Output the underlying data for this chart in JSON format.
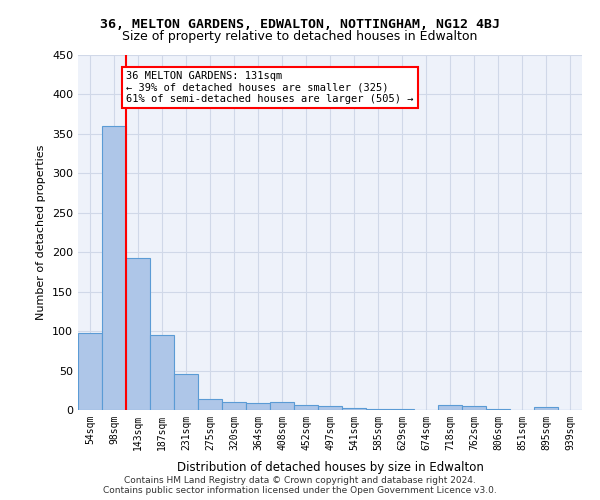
{
  "title1": "36, MELTON GARDENS, EDWALTON, NOTTINGHAM, NG12 4BJ",
  "title2": "Size of property relative to detached houses in Edwalton",
  "xlabel": "Distribution of detached houses by size in Edwalton",
  "ylabel": "Number of detached properties",
  "categories": [
    "54sqm",
    "98sqm",
    "143sqm",
    "187sqm",
    "231sqm",
    "275sqm",
    "320sqm",
    "364sqm",
    "408sqm",
    "452sqm",
    "497sqm",
    "541sqm",
    "585sqm",
    "629sqm",
    "674sqm",
    "718sqm",
    "762sqm",
    "806sqm",
    "851sqm",
    "895sqm",
    "939sqm"
  ],
  "values": [
    97,
    360,
    193,
    95,
    46,
    14,
    10,
    9,
    10,
    6,
    5,
    3,
    1,
    1,
    0,
    6,
    5,
    1,
    0,
    4,
    0
  ],
  "bar_color": "#aec6e8",
  "bar_edge_color": "#5b9bd5",
  "property_size_sqm": 131,
  "property_line_x": 2,
  "annotation_text": "36 MELTON GARDENS: 131sqm\n← 39% of detached houses are smaller (325)\n61% of semi-detached houses are larger (505) →",
  "annotation_box_color": "white",
  "annotation_box_edge_color": "red",
  "vline_color": "red",
  "grid_color": "#d0d8e8",
  "bg_color": "#eef2fa",
  "footer_text": "Contains HM Land Registry data © Crown copyright and database right 2024.\nContains public sector information licensed under the Open Government Licence v3.0.",
  "ylim": [
    0,
    450
  ],
  "yticks": [
    0,
    50,
    100,
    150,
    200,
    250,
    300,
    350,
    400,
    450
  ]
}
